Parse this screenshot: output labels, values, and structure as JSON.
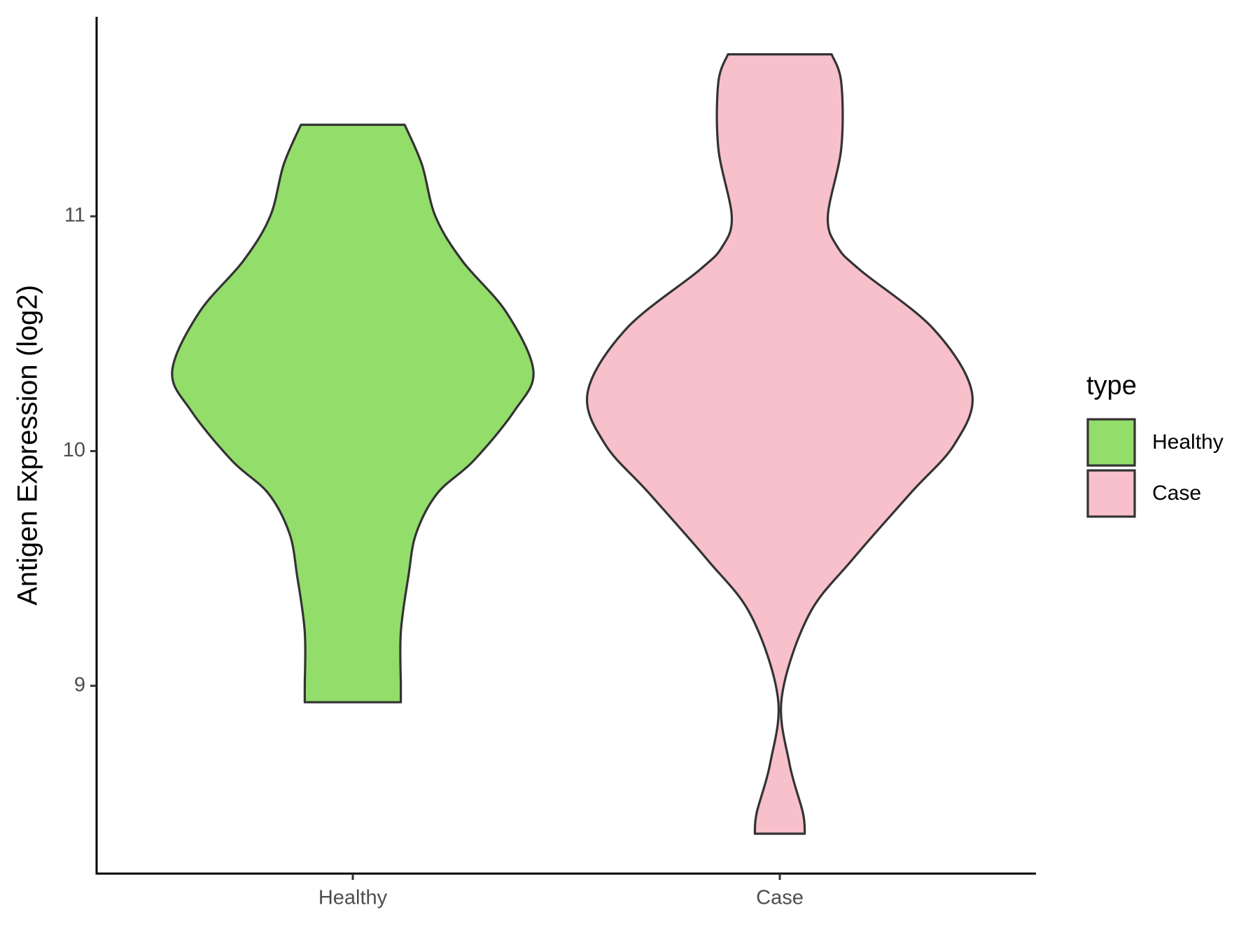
{
  "chart_data": {
    "type": "violin",
    "y_label": "Antigen Expression (log2)",
    "categories": [
      "Healthy",
      "Case"
    ],
    "legend_title": "type",
    "legend_position": "right",
    "ylim": [
      8.2,
      11.85
    ],
    "yticks": [
      9,
      10,
      11
    ],
    "series": [
      {
        "name": "Healthy",
        "color": "#93dd6b",
        "y": [
          11.39,
          11.22,
          11.0,
          10.81,
          10.59,
          10.34,
          10.17,
          9.96,
          9.82,
          9.65,
          9.47,
          9.23,
          9.0,
          8.93
        ],
        "density": [
          0.27,
          0.36,
          0.43,
          0.57,
          0.8,
          0.94,
          0.84,
          0.63,
          0.44,
          0.33,
          0.29,
          0.25,
          0.25,
          0.25
        ]
      },
      {
        "name": "Case",
        "color": "#f7c0cb",
        "y": [
          11.69,
          11.57,
          11.29,
          11.0,
          10.87,
          10.77,
          10.52,
          10.25,
          10.03,
          9.82,
          9.54,
          9.3,
          8.95,
          8.67,
          8.46,
          8.37
        ],
        "density": [
          0.27,
          0.32,
          0.32,
          0.25,
          0.3,
          0.42,
          0.8,
          1.0,
          0.91,
          0.68,
          0.38,
          0.15,
          0.01,
          0.05,
          0.12,
          0.13
        ]
      }
    ]
  }
}
